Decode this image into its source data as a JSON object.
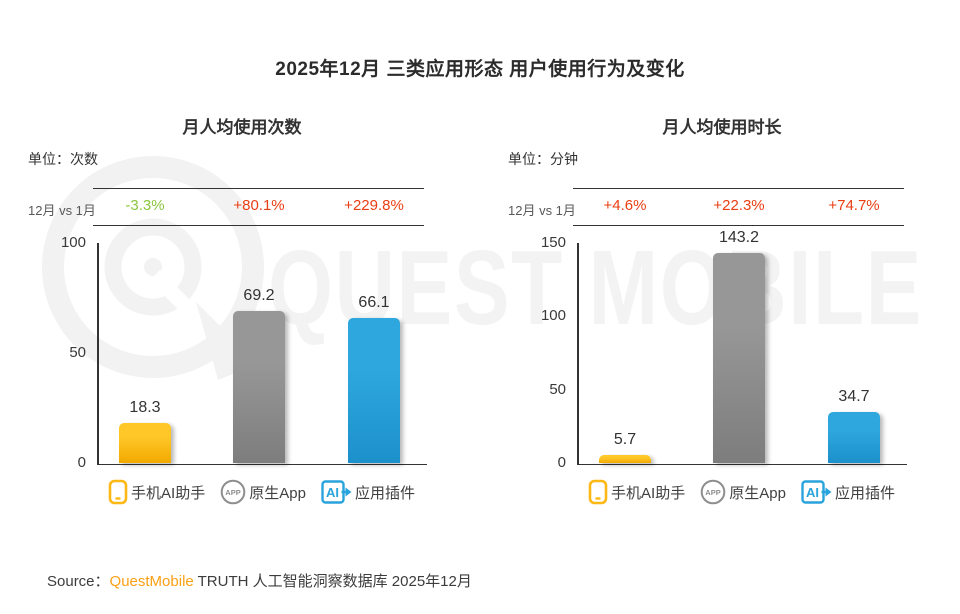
{
  "title": "2025年12月 三类应用形态 用户使用行为及变化",
  "watermark": {
    "text": "QUEST MOBILE",
    "logo": "questmobile-q-logo"
  },
  "legend": {
    "items": [
      {
        "icon": "phone-icon",
        "icon_text": "",
        "label": "手机AI助手"
      },
      {
        "icon": "app-circle-icon",
        "icon_text": "APP",
        "label": "原生App"
      },
      {
        "icon": "ai-plugin-icon",
        "icon_text": "AI",
        "label": "应用插件"
      }
    ]
  },
  "series_styles": [
    {
      "name": "手机AI助手",
      "color_top": "#FFC728",
      "color_bottom": "#F2A900",
      "accent": "#FCB814"
    },
    {
      "name": "原生App",
      "color_top": "#979797",
      "color_bottom": "#7D7D7D",
      "accent": "#8E8E8E"
    },
    {
      "name": "应用插件",
      "color_top": "#2EA7DE",
      "color_bottom": "#1C90CB",
      "accent": "#29A3DB"
    }
  ],
  "palette": {
    "increase_red": "#EA3E12",
    "decrease_green": "#8CC63F",
    "brand_orange": "#FCA016",
    "text_dark": "#333333",
    "text_gray": "#595959",
    "watermark_gray": "#F2F2F2"
  },
  "chart_data": [
    {
      "type": "bar",
      "title": "月人均使用次数",
      "unit_label": "单位：次数",
      "compare_label": "12月 vs 1月",
      "categories": [
        "手机AI助手",
        "原生App",
        "应用插件"
      ],
      "values": [
        18.3,
        69.2,
        66.1
      ],
      "changes": [
        {
          "text": "-3.3%",
          "direction": "down"
        },
        {
          "text": "+80.1%",
          "direction": "up"
        },
        {
          "text": "+229.8%",
          "direction": "up"
        }
      ],
      "yticks": [
        0,
        50,
        100
      ],
      "ylim": [
        0,
        100
      ],
      "grid": false,
      "legend_position": "bottom"
    },
    {
      "type": "bar",
      "title": "月人均使用时长",
      "unit_label": "单位：分钟",
      "compare_label": "12月 vs 1月",
      "categories": [
        "手机AI助手",
        "原生App",
        "应用插件"
      ],
      "values": [
        5.7,
        143.2,
        34.7
      ],
      "changes": [
        {
          "text": "+4.6%",
          "direction": "up"
        },
        {
          "text": "+22.3%",
          "direction": "up"
        },
        {
          "text": "+74.7%",
          "direction": "up"
        }
      ],
      "yticks": [
        0,
        50,
        100,
        150
      ],
      "ylim": [
        0,
        150
      ],
      "grid": false,
      "legend_position": "bottom"
    }
  ],
  "source": {
    "prefix": "Source：",
    "brand": "QuestMobile",
    "suffix": " TRUTH 人工智能洞察数据库 2025年12月"
  }
}
